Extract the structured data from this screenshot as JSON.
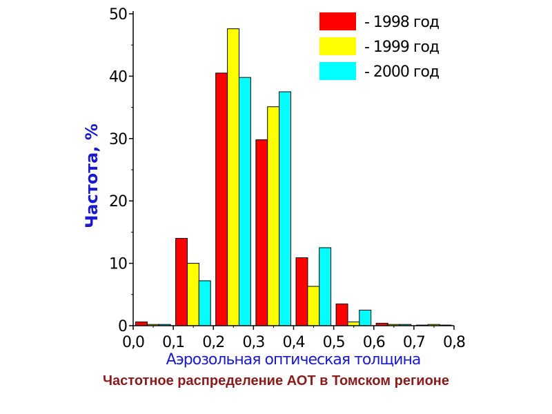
{
  "chart_data": {
    "type": "bar",
    "categories": [
      "0,0",
      "0,1",
      "0,2",
      "0,3",
      "0,4",
      "0,5",
      "0,6",
      "0,7"
    ],
    "series": [
      {
        "name": "- 1998 год",
        "color": "#ff0000",
        "values": [
          0.6,
          14.0,
          40.5,
          29.8,
          10.9,
          3.5,
          0.4,
          0.1
        ]
      },
      {
        "name": "- 1999 год",
        "color": "#ffff00",
        "values": [
          0.2,
          10.0,
          47.6,
          35.1,
          6.3,
          0.6,
          0.2,
          0.2
        ]
      },
      {
        "name": "- 2000 год",
        "color": "#00ffff",
        "values": [
          0.2,
          7.2,
          39.8,
          37.5,
          12.5,
          2.5,
          0.2,
          0.1
        ]
      }
    ],
    "xticks": [
      "0,0",
      "0,1",
      "0,2",
      "0,3",
      "0,4",
      "0,5",
      "0,6",
      "0,7",
      "0,8"
    ],
    "yticks": [
      "0",
      "10",
      "20",
      "30",
      "40",
      "50"
    ],
    "xlabel": "Аэрозольная оптическая толщина",
    "ylabel": "Частота, %",
    "xlim": [
      0,
      0.8
    ],
    "ylim": [
      0,
      50
    ],
    "grid": false,
    "legend_position": "top-right"
  },
  "caption": "Частотное распределение АОТ в Томском регионе"
}
